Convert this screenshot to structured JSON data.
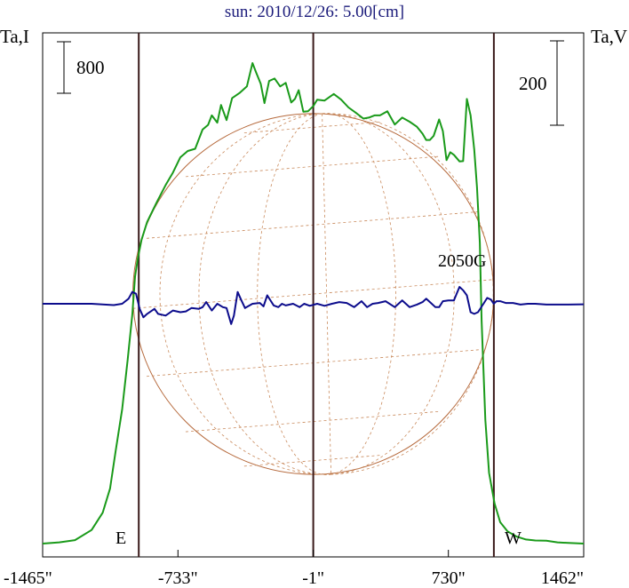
{
  "chart_data": {
    "type": "line",
    "title": "sun: 2010/12/26: 5.00[cm]",
    "left_axis_label": "Ta,I",
    "right_axis_label": "Ta,V",
    "left_scale_bar_label": "800",
    "right_scale_bar_label": "200",
    "x_ticks": [
      {
        "value": -1465,
        "label": "-1465\""
      },
      {
        "value": -733,
        "label": "-733\""
      },
      {
        "value": -1,
        "label": "-1\""
      },
      {
        "value": 730,
        "label": "730\""
      },
      {
        "value": 1462,
        "label": "1462\""
      }
    ],
    "xlim": [
      -1465,
      1462
    ],
    "limb_markers": [
      {
        "label": "E",
        "x": -945
      },
      {
        "label": "W",
        "x": 976
      }
    ],
    "annotation": {
      "label": "2050G",
      "x": 830
    },
    "disk": {
      "center_x": -1,
      "radius": 976
    },
    "series": [
      {
        "color": "#1a9a1a",
        "axis": "left",
        "x": [
          -1465,
          -1375,
          -1290,
          -1200,
          -1140,
          -1100,
          -1070,
          -1035,
          -1005,
          -980,
          -965,
          -950,
          -930,
          -900,
          -850,
          -800,
          -760,
          -720,
          -680,
          -640,
          -600,
          -570,
          -550,
          -520,
          -500,
          -470,
          -440,
          -400,
          -360,
          -330,
          -310,
          -285,
          -265,
          -240,
          -210,
          -180,
          -150,
          -120,
          -100,
          -80,
          -55,
          -30,
          0,
          20,
          60,
          110,
          150,
          190,
          230,
          270,
          300,
          330,
          360,
          400,
          440,
          480,
          520,
          560,
          590,
          610,
          630,
          650,
          680,
          700,
          720,
          740,
          760,
          790,
          810,
          830,
          850,
          870,
          885,
          900,
          910,
          930,
          950,
          980,
          1010,
          1050,
          1100,
          1150,
          1200,
          1260,
          1320,
          1380,
          1462
        ],
        "y": [
          0.0,
          0.04,
          0.11,
          0.43,
          0.98,
          1.75,
          2.94,
          4.26,
          5.83,
          7.26,
          8.47,
          9.06,
          9.63,
          10.2,
          10.8,
          11.37,
          11.77,
          12.25,
          12.45,
          12.52,
          13.13,
          13.28,
          13.58,
          13.35,
          13.91,
          13.43,
          14.13,
          14.29,
          14.5,
          15.24,
          14.94,
          14.58,
          13.97,
          14.67,
          14.75,
          14.5,
          14.61,
          13.99,
          14.1,
          14.38,
          13.7,
          13.71,
          13.88,
          14.08,
          14.05,
          14.26,
          14.08,
          13.83,
          13.66,
          13.48,
          13.51,
          13.58,
          13.58,
          13.71,
          13.29,
          13.51,
          13.38,
          13.22,
          13.0,
          12.8,
          12.8,
          12.93,
          13.45,
          13.08,
          12.16,
          12.41,
          12.33,
          12.12,
          12.13,
          14.1,
          13.58,
          12.5,
          11.3,
          9.54,
          7.07,
          3.92,
          2.24,
          1.27,
          0.68,
          0.39,
          0.22,
          0.13,
          0.1,
          0.09,
          0.04,
          0.02,
          0.0
        ]
      },
      {
        "color": "#0c0c8c",
        "axis": "right",
        "x": [
          -1465,
          -1200,
          -1080,
          -1035,
          -1000,
          -980,
          -960,
          -940,
          -920,
          -900,
          -860,
          -840,
          -800,
          -760,
          -720,
          -690,
          -660,
          -620,
          -600,
          -580,
          -550,
          -520,
          -490,
          -470,
          -445,
          -430,
          -410,
          -390,
          -370,
          -330,
          -290,
          -270,
          -250,
          -215,
          -190,
          -170,
          -150,
          -110,
          -75,
          -50,
          -20,
          20,
          60,
          100,
          140,
          180,
          220,
          260,
          290,
          320,
          350,
          390,
          440,
          480,
          520,
          560,
          590,
          610,
          640,
          660,
          680,
          700,
          730,
          760,
          790,
          810,
          830,
          850,
          870,
          890,
          920,
          940,
          960,
          975,
          990,
          1010,
          1040,
          1080,
          1120,
          1160,
          1200,
          1260,
          1320,
          1380,
          1462
        ],
        "y": [
          0.0,
          0.0,
          -0.08,
          0.0,
          0.3,
          0.7,
          0.6,
          -0.3,
          -0.8,
          -0.6,
          -0.3,
          -0.6,
          -0.7,
          -0.4,
          -0.5,
          -0.45,
          -0.25,
          -0.3,
          -0.2,
          0.1,
          -0.4,
          0.0,
          -0.2,
          -0.25,
          -1.2,
          -0.7,
          0.7,
          0.2,
          -0.25,
          0.0,
          0.05,
          -0.15,
          0.5,
          -0.1,
          -0.2,
          0.0,
          -0.1,
          0.0,
          -0.2,
          0.0,
          -0.12,
          0.0,
          -0.12,
          0.0,
          0.1,
          0.05,
          -0.2,
          0.15,
          -0.2,
          0.0,
          0.05,
          0.15,
          -0.2,
          0.2,
          -0.2,
          -0.05,
          0.1,
          0.3,
          0.0,
          -0.2,
          -0.2,
          0.15,
          0.2,
          0.2,
          1.0,
          0.8,
          0.5,
          -0.5,
          -0.6,
          -0.5,
          0.0,
          0.35,
          0.25,
          0.0,
          0.15,
          0.15,
          0.05,
          0.05,
          -0.05,
          0.0,
          0.0,
          -0.05,
          -0.05,
          -0.05,
          -0.03
        ]
      }
    ]
  }
}
